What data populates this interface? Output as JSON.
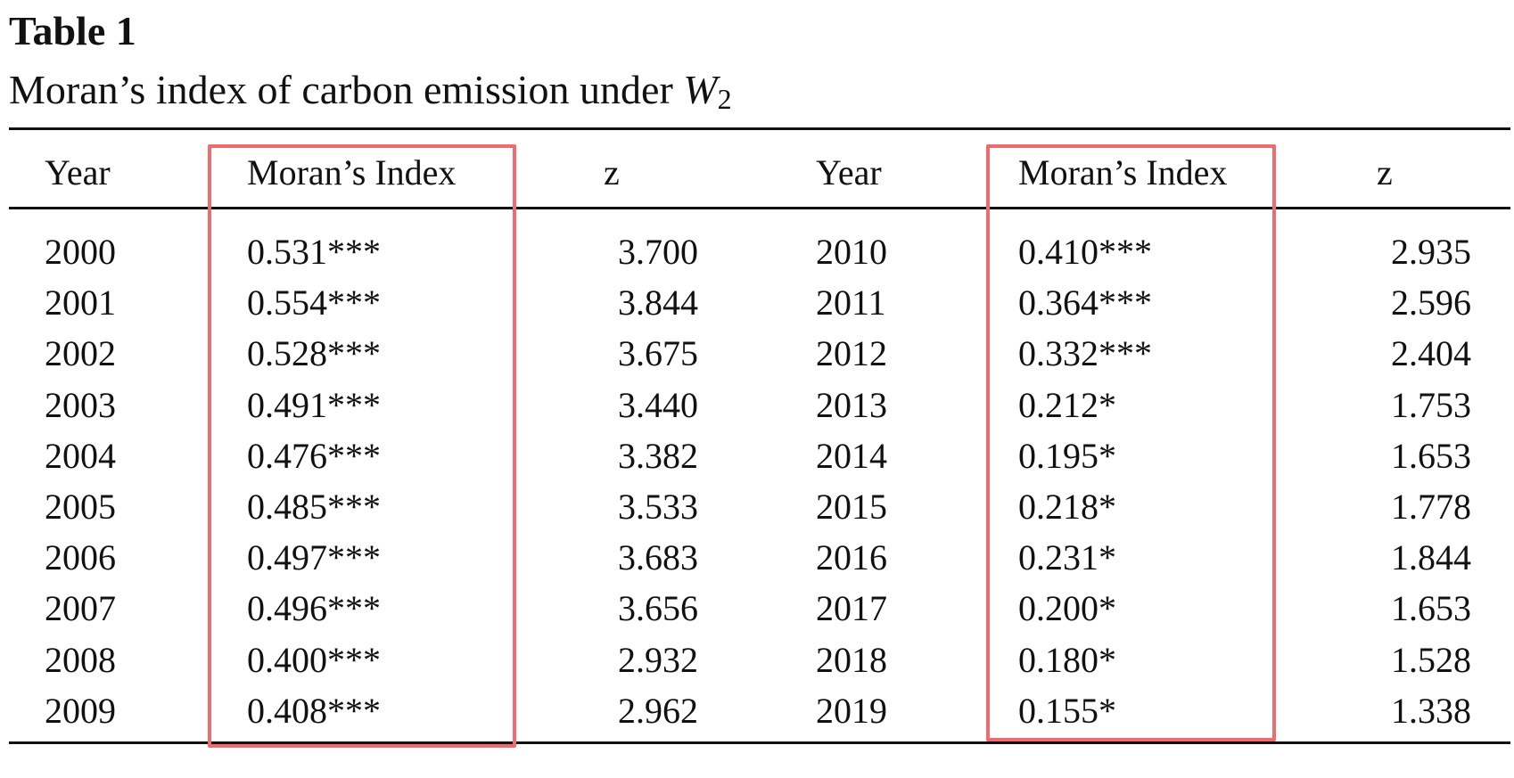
{
  "caption": {
    "label": "Table 1",
    "title_text": "Moran’s index of carbon emission under ",
    "title_var": "W",
    "title_sub": "2"
  },
  "headers": [
    "Year",
    "Moran’s Index",
    "z",
    "Year",
    "Moran’s Index",
    "z"
  ],
  "rows": [
    [
      "2000",
      "0.531***",
      "3.700",
      "2010",
      "0.410***",
      "2.935"
    ],
    [
      "2001",
      "0.554***",
      "3.844",
      "2011",
      "0.364***",
      "2.596"
    ],
    [
      "2002",
      "0.528***",
      "3.675",
      "2012",
      "0.332***",
      "2.404"
    ],
    [
      "2003",
      "0.491***",
      "3.440",
      "2013",
      "0.212*",
      "1.753"
    ],
    [
      "2004",
      "0.476***",
      "3.382",
      "2014",
      "0.195*",
      "1.653"
    ],
    [
      "2005",
      "0.485***",
      "3.533",
      "2015",
      "0.218*",
      "1.778"
    ],
    [
      "2006",
      "0.497***",
      "3.683",
      "2016",
      "0.231*",
      "1.844"
    ],
    [
      "2007",
      "0.496***",
      "3.656",
      "2017",
      "0.200*",
      "1.653"
    ],
    [
      "2008",
      "0.400***",
      "2.932",
      "2018",
      "0.180*",
      "1.528"
    ],
    [
      "2009",
      "0.408***",
      "2.962",
      "2019",
      "0.155*",
      "1.338"
    ]
  ],
  "highlight_color": "#ee6b6e"
}
